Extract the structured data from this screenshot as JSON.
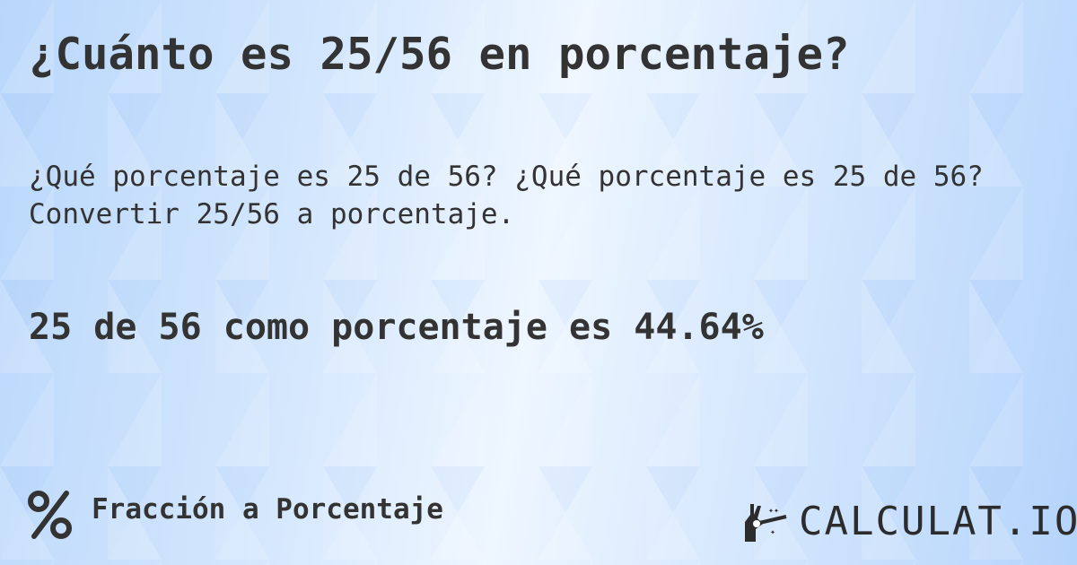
{
  "title": "¿Cuánto es 25/56 en porcentaje?",
  "subtitle": "¿Qué porcentaje es 25 de 56? ¿Qué porcentaje es 25 de 56? Convertir 25/56 a porcentaje.",
  "result": "25 de 56 como porcentaje es 44.64%",
  "footer": {
    "icon": "percent-icon",
    "label": "Fracción a Porcentaje"
  },
  "logo": {
    "text": "CALCULAT.IO",
    "icon": "magic-hand-icon"
  }
}
